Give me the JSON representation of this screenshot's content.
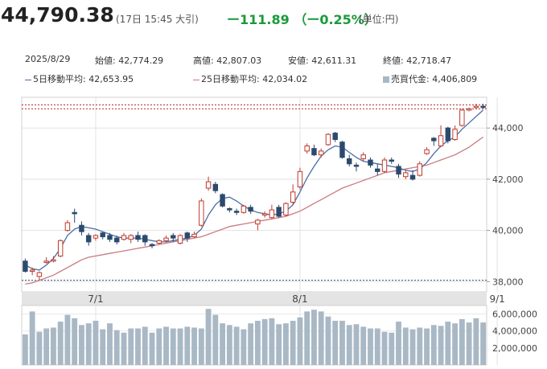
{
  "header": {
    "price": "44,790.38",
    "time": "(17日 15:45 大引)",
    "change": "ー111.89 （ー0.25%）",
    "unit": "(単位:円)"
  },
  "ohlc": {
    "date": "2025/8/29",
    "open": "始値: 42,774.29",
    "high": "高値: 42,807.03",
    "low": "安値: 42,611.31",
    "close": "終値: 42,718.47",
    "ma5": "5日移動平均: 42,653.95",
    "ma25": "25日移動平均: 42,034.02",
    "volume": "売買代金: 4,406,809"
  },
  "colors": {
    "up": "#c0392b",
    "down": "#2c4a6e",
    "ma5": "#4a6fa8",
    "ma25": "#c97b80",
    "volume": "#a9b8c5"
  },
  "chart_data": {
    "type": "candlestick",
    "y_ticks": [
      "44,000",
      "42,000",
      "40,000",
      "38,000"
    ],
    "y_tick_values": [
      44000,
      42000,
      40000,
      38000
    ],
    "ylim": [
      37600,
      45200
    ],
    "x_tick_labels": [
      "7/1",
      "8/1",
      "9/1"
    ],
    "x_tick_index": [
      10,
      39,
      67
    ],
    "ref_lines": [
      44900,
      44750,
      38050
    ],
    "candles": [
      [
        38800,
        38400,
        38900,
        38350
      ],
      [
        38400,
        38450,
        38550,
        38250
      ],
      [
        38200,
        38350,
        38400,
        38050
      ],
      [
        38750,
        38800,
        38950,
        38700
      ],
      [
        38800,
        38850,
        39000,
        38750
      ],
      [
        39000,
        39600,
        39650,
        38950
      ],
      [
        40000,
        40300,
        40400,
        39950
      ],
      [
        40700,
        40650,
        40850,
        40300
      ],
      [
        40200,
        39950,
        40350,
        39800
      ],
      [
        39800,
        39550,
        39900,
        39400
      ],
      [
        39700,
        39800,
        39850,
        39600
      ],
      [
        39900,
        39750,
        39950,
        39650
      ],
      [
        39800,
        39650,
        39900,
        39550
      ],
      [
        39700,
        39550,
        39800,
        39450
      ],
      [
        39650,
        39800,
        39900,
        39600
      ],
      [
        39650,
        39800,
        39850,
        39500
      ],
      [
        39800,
        39650,
        39950,
        39550
      ],
      [
        39800,
        39550,
        39850,
        39400
      ],
      [
        39450,
        39400,
        39500,
        39300
      ],
      [
        39500,
        39600,
        39650,
        39450
      ],
      [
        39600,
        39700,
        39800,
        39550
      ],
      [
        39800,
        39700,
        39900,
        39550
      ],
      [
        39500,
        39800,
        39850,
        39450
      ],
      [
        39900,
        39700,
        39950,
        39550
      ],
      [
        39750,
        39850,
        39950,
        39700
      ],
      [
        40200,
        41150,
        41250,
        40150
      ],
      [
        41650,
        41900,
        42100,
        41550
      ],
      [
        41800,
        41550,
        41900,
        41450
      ],
      [
        41400,
        40950,
        41450,
        40900
      ],
      [
        40850,
        40800,
        40900,
        40700
      ],
      [
        40750,
        40700,
        40850,
        40600
      ],
      [
        40700,
        40950,
        41000,
        40650
      ],
      [
        40900,
        40750,
        41000,
        40650
      ],
      [
        40250,
        40400,
        40450,
        40000
      ],
      [
        40600,
        40650,
        40750,
        40500
      ],
      [
        40500,
        40800,
        41000,
        40450
      ],
      [
        40900,
        40550,
        41000,
        40500
      ],
      [
        40600,
        41050,
        41100,
        40550
      ],
      [
        41100,
        41500,
        41800,
        41000
      ],
      [
        41700,
        42300,
        42450,
        41600
      ],
      [
        43100,
        43300,
        43400,
        43000
      ],
      [
        43200,
        42950,
        43350,
        42900
      ],
      [
        42950,
        43100,
        43200,
        42850
      ],
      [
        43350,
        43750,
        43800,
        43300
      ],
      [
        43800,
        43550,
        43850,
        43450
      ],
      [
        43450,
        42850,
        43500,
        42800
      ],
      [
        42800,
        42600,
        42950,
        42500
      ],
      [
        42550,
        42500,
        42650,
        42300
      ],
      [
        42800,
        42950,
        43050,
        42700
      ],
      [
        42750,
        42550,
        42850,
        42450
      ],
      [
        42400,
        42300,
        42600,
        42150
      ],
      [
        42300,
        42750,
        42850,
        42250
      ],
      [
        42750,
        42700,
        42850,
        42600
      ],
      [
        42500,
        42200,
        42600,
        42050
      ],
      [
        42100,
        42250,
        42350,
        42000
      ],
      [
        42150,
        42000,
        42350,
        41950
      ],
      [
        42150,
        42600,
        42700,
        42100
      ],
      [
        43000,
        43150,
        43250,
        42950
      ],
      [
        43600,
        43500,
        43650,
        43300
      ],
      [
        43300,
        43700,
        44100,
        43250
      ],
      [
        44000,
        43500,
        44050,
        43400
      ],
      [
        43550,
        43950,
        44100,
        43500
      ],
      [
        44100,
        44700,
        44750,
        44050
      ],
      [
        44700,
        44750,
        44800,
        44650
      ],
      [
        44800,
        44850,
        44950,
        44750
      ],
      [
        44850,
        44800,
        44950,
        44750
      ]
    ],
    "ma5": [
      38650,
      38500,
      38450,
      38650,
      38900,
      39300,
      39800,
      40050,
      40150,
      40100,
      40050,
      39950,
      39850,
      39750,
      39700,
      39700,
      39700,
      39650,
      39600,
      39550,
      39550,
      39600,
      39650,
      39700,
      39800,
      40050,
      40600,
      41000,
      41250,
      41300,
      41150,
      40950,
      40800,
      40700,
      40650,
      40600,
      40650,
      40750,
      41000,
      41500,
      42050,
      42500,
      42900,
      43150,
      43300,
      43250,
      43050,
      42850,
      42700,
      42650,
      42600,
      42550,
      42500,
      42450,
      42350,
      42300,
      42400,
      42650,
      43000,
      43300,
      43500,
      43650,
      43950,
      44200,
      44450,
      44700
    ],
    "ma25": [
      37900,
      37950,
      38050,
      38150,
      38250,
      38400,
      38550,
      38700,
      38850,
      38950,
      39000,
      39050,
      39100,
      39150,
      39200,
      39250,
      39300,
      39350,
      39400,
      39450,
      39500,
      39550,
      39600,
      39650,
      39700,
      39750,
      39850,
      39950,
      40050,
      40150,
      40200,
      40250,
      40300,
      40350,
      40400,
      40450,
      40500,
      40550,
      40650,
      40750,
      40900,
      41050,
      41200,
      41350,
      41500,
      41650,
      41750,
      41850,
      41950,
      42050,
      42150,
      42250,
      42300,
      42350,
      42400,
      42450,
      42500,
      42550,
      42650,
      42750,
      42850,
      42950,
      43100,
      43250,
      43450,
      43650
    ],
    "volume_ticks": [
      "6,000,000",
      "4,000,000",
      "2,000,000"
    ],
    "volume_tick_values": [
      6000000,
      4000000,
      2000000
    ],
    "volume_max": 7000000,
    "volume": [
      3600000,
      6300000,
      3900000,
      4300000,
      4400000,
      5100000,
      5900000,
      5500000,
      4700000,
      4900000,
      5200000,
      4200000,
      4900000,
      4100000,
      3800000,
      4300000,
      4300000,
      4500000,
      3800000,
      4300000,
      4500000,
      4300000,
      4300000,
      4500000,
      4400000,
      4300000,
      6600000,
      5900000,
      4900000,
      4700000,
      4500000,
      4200000,
      4900000,
      5200000,
      5400000,
      5500000,
      4800000,
      4900000,
      5200000,
      5600000,
      6300000,
      6500000,
      6300000,
      5700000,
      5200000,
      5200000,
      4700000,
      4800000,
      4500000,
      4300000,
      4300000,
      3900000,
      3800000,
      5100000,
      4400000,
      4200000,
      4400000,
      4300000,
      4700000,
      4600000,
      5100000,
      4900000,
      5400000,
      5000000,
      5500000,
      5000000
    ]
  }
}
